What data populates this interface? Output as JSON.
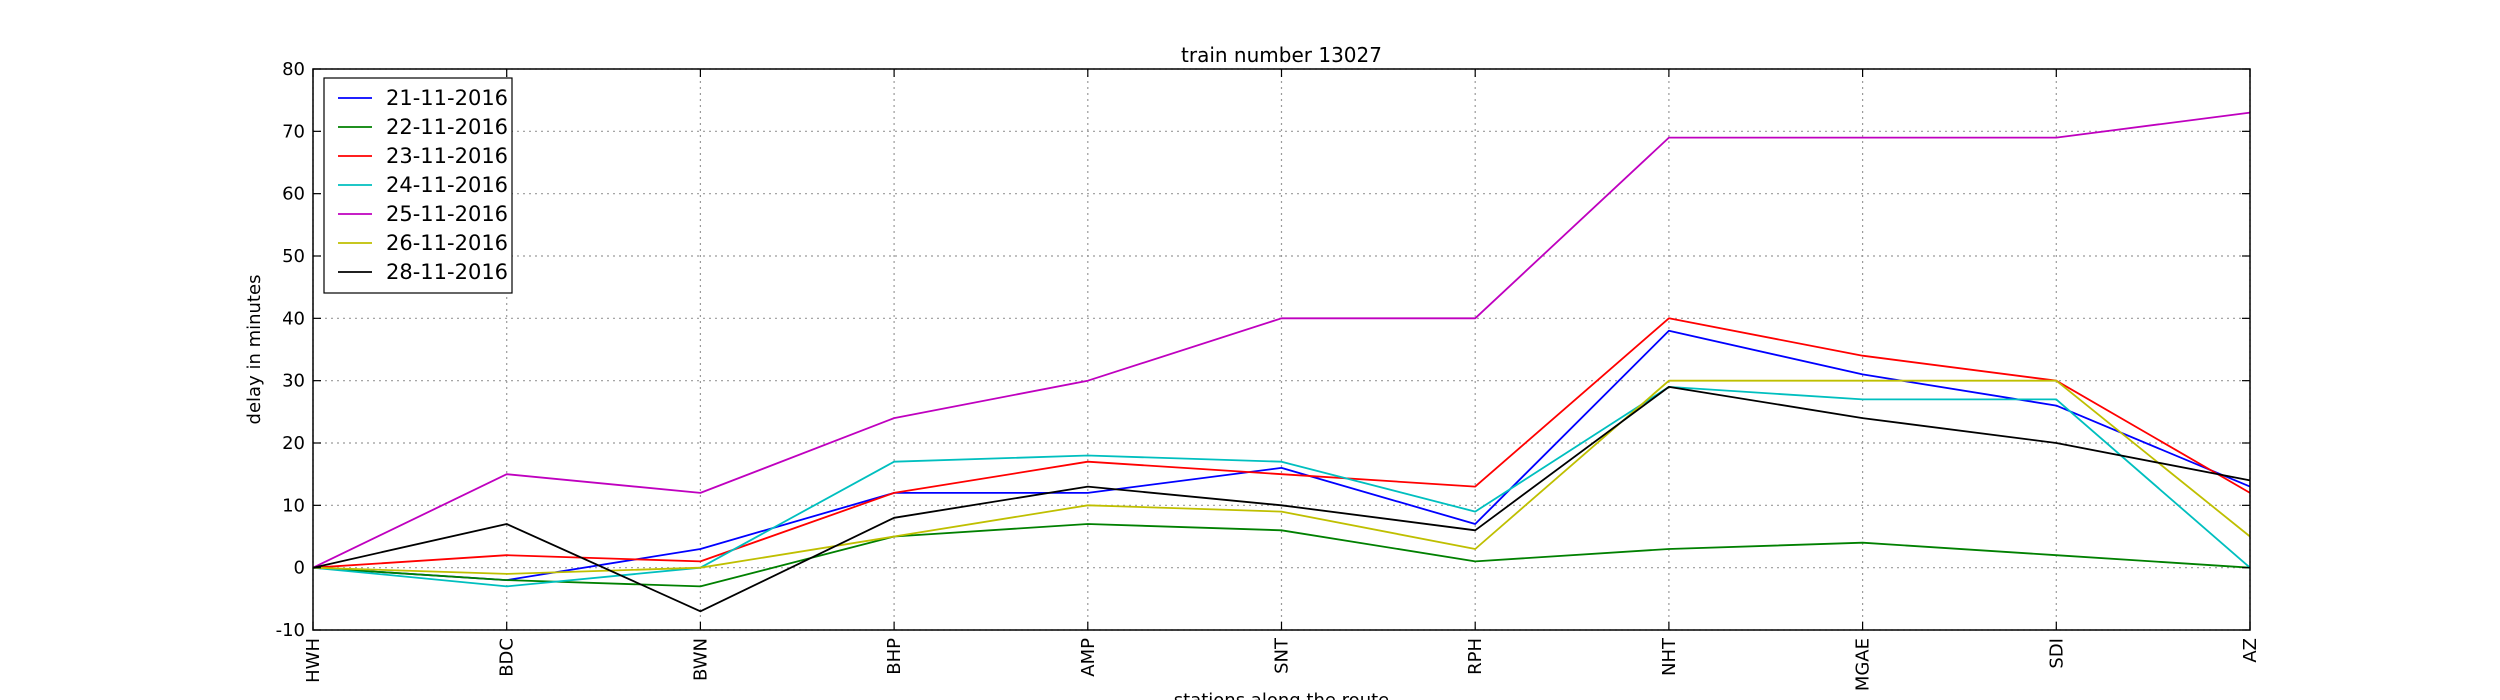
{
  "chart_data": {
    "type": "line",
    "title": "train number 13027",
    "xlabel": "stations along the route",
    "ylabel": "delay in minutes",
    "categories": [
      "HWH",
      "BDC",
      "BWN",
      "BHP",
      "AMP",
      "SNT",
      "RPH",
      "NHT",
      "MGAE",
      "SDI",
      "AZ"
    ],
    "ylim": [
      -10,
      80
    ],
    "yticks": [
      -10,
      0,
      10,
      20,
      30,
      40,
      50,
      60,
      70,
      80
    ],
    "grid": true,
    "legend_position": "top-left",
    "series": [
      {
        "name": "21-11-2016",
        "color": "#0000ff",
        "values": [
          0,
          -2,
          3,
          12,
          12,
          16,
          7,
          38,
          31,
          26,
          13
        ]
      },
      {
        "name": "22-11-2016",
        "color": "#008000",
        "values": [
          0,
          -2,
          -3,
          5,
          7,
          6,
          1,
          3,
          4,
          2,
          0
        ]
      },
      {
        "name": "23-11-2016",
        "color": "#ff0000",
        "values": [
          0,
          2,
          1,
          12,
          17,
          15,
          13,
          40,
          34,
          30,
          12
        ]
      },
      {
        "name": "24-11-2016",
        "color": "#00bfbf",
        "values": [
          0,
          -3,
          0,
          17,
          18,
          17,
          9,
          29,
          27,
          27,
          0
        ]
      },
      {
        "name": "25-11-2016",
        "color": "#bf00bf",
        "values": [
          0,
          15,
          12,
          24,
          30,
          40,
          40,
          69,
          69,
          69,
          73
        ]
      },
      {
        "name": "26-11-2016",
        "color": "#bfbf00",
        "values": [
          0,
          -1,
          0,
          5,
          10,
          9,
          3,
          30,
          30,
          30,
          5
        ]
      },
      {
        "name": "28-11-2016",
        "color": "#000000",
        "values": [
          0,
          7,
          -7,
          8,
          13,
          10,
          6,
          29,
          24,
          20,
          14
        ]
      }
    ]
  }
}
